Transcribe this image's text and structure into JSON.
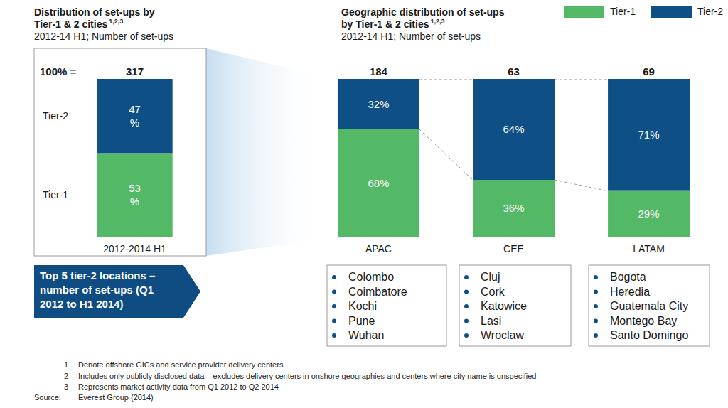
{
  "chart_data": [
    {
      "type": "bar",
      "stacked": true,
      "title": "Distribution of set-ups by\nTier-1 & 2 cities",
      "title_note": "1,2,3",
      "subtitle": "2012-14 H1; Number of set-ups",
      "total_label": "100% =",
      "totals": [
        317
      ],
      "categories": [
        "2012-2014 H1"
      ],
      "series": [
        {
          "name": "Tier-1",
          "color": "#53b966",
          "values": [
            53
          ],
          "value_labels": [
            "53\n%"
          ]
        },
        {
          "name": "Tier-2",
          "color": "#0e4f86",
          "values": [
            47
          ],
          "value_labels": [
            "47\n%"
          ]
        }
      ],
      "ylim": [
        0,
        100
      ],
      "data_labels": true,
      "legend": "left",
      "tick_labels": "x"
    },
    {
      "type": "bar",
      "stacked": true,
      "title": "Geographic distribution of set-ups\nby Tier-1 & 2 cities",
      "title_note": "1,2,3",
      "subtitle": "2012-14 H1; Number of set-ups",
      "totals": [
        184,
        63,
        69
      ],
      "categories": [
        "APAC",
        "CEE",
        "LATAM"
      ],
      "series": [
        {
          "name": "Tier-1",
          "color": "#53b966",
          "values": [
            68,
            36,
            29
          ],
          "value_labels": [
            "68%",
            "36%",
            "29%"
          ]
        },
        {
          "name": "Tier-2",
          "color": "#0e4f86",
          "values": [
            32,
            64,
            71
          ],
          "value_labels": [
            "32%",
            "64%",
            "71%"
          ]
        }
      ],
      "ylim": [
        0,
        100
      ],
      "data_labels": true,
      "legend": "top-right",
      "tick_labels": "x"
    }
  ],
  "callout": [
    "Top 5 tier-2 locations –",
    "number of set-ups (Q1",
    "2012 to H1 2014)"
  ],
  "locations": [
    [
      "Colombo",
      "Coimbatore",
      "Kochi",
      "Pune",
      "Wuhan"
    ],
    [
      "Cluj",
      "Cork",
      "Katowice",
      "Lasi",
      "Wroclaw"
    ],
    [
      "Bogota",
      "Heredia",
      "Guatemala City",
      "Montego Bay",
      "Santo Domingo"
    ]
  ],
  "footnotes": [
    {
      "marker": 1,
      "text": "Denote offshore GICs and service provider delivery centers"
    },
    {
      "marker": 2,
      "text": "Includes only publicly disclosed data – excludes delivery centers in onshore geographies and centers where city name is unspecified"
    },
    {
      "marker": 3,
      "text": "Represents market activity data from Q1 2012 to Q2 2014"
    }
  ],
  "source": {
    "label": "Source:",
    "text": "Everest Group (2014)"
  }
}
